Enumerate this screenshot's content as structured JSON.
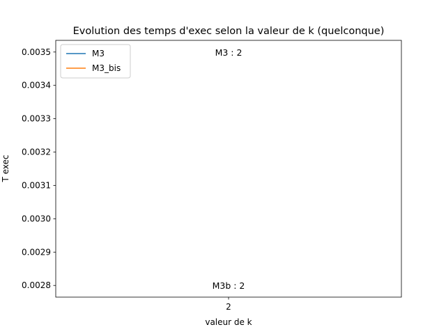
{
  "chart_data": {
    "type": "line",
    "title": "Evolution des temps d'exec selon la valeur de k (quelconque)",
    "xlabel": "valeur de k",
    "ylabel": "T exec",
    "x": [
      2
    ],
    "series": [
      {
        "name": "M3",
        "values": [
          0.0035
        ],
        "color": "#1f77b4"
      },
      {
        "name": "M3_bis",
        "values": [
          0.0028
        ],
        "color": "#ff7f0e"
      }
    ],
    "annotations": [
      {
        "text": "M3 : 2",
        "x": 2,
        "y": 0.0035
      },
      {
        "text": "M3b : 2",
        "x": 2,
        "y": 0.0028
      }
    ],
    "xticks": [
      2
    ],
    "xtick_labels": [
      "2"
    ],
    "yticks": [
      0.0028,
      0.0029,
      0.003,
      0.0031,
      0.0032,
      0.0033,
      0.0034,
      0.0035
    ],
    "ytick_labels": [
      "0.0028",
      "0.0029",
      "0.0030",
      "0.0031",
      "0.0032",
      "0.0033",
      "0.0034",
      "0.0035"
    ],
    "xlim": [
      1.95,
      2.05
    ],
    "ylim": [
      0.002765,
      0.003535
    ],
    "grid": false,
    "legend_position": "top-left"
  }
}
